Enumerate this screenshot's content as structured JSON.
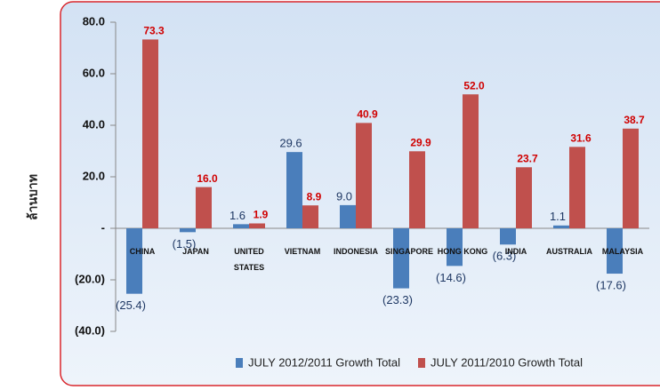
{
  "chart_data": {
    "type": "bar",
    "y_axis_label": "ล้านบาท",
    "categories": [
      "CHINA",
      "JAPAN",
      "UNITED STATES",
      "VIETNAM",
      "INDONESIA",
      "SINGAPORE",
      "HONG KONG",
      "INDIA",
      "AUSTRALIA",
      "MALAYSIA"
    ],
    "series": [
      {
        "name": "JULY 2012/2011 Growth Total",
        "color": "#4a7ebb",
        "values": [
          -25.4,
          -1.5,
          1.6,
          29.6,
          9.0,
          -23.3,
          -14.6,
          -6.3,
          1.1,
          -17.6
        ],
        "value_labels": [
          "(25.4)",
          "(1.5)",
          "1.6",
          "29.6",
          "9.0",
          "(23.3)",
          "(14.6)",
          "(6.3)",
          "1.1",
          "(17.6)"
        ]
      },
      {
        "name": "JULY 2011/2010 Growth Total",
        "color": "#c0504d",
        "values": [
          73.3,
          16.0,
          1.9,
          8.9,
          40.9,
          29.9,
          52.0,
          23.7,
          31.6,
          38.7
        ],
        "value_labels": [
          "73.3",
          "16.0",
          "1.9",
          "8.9",
          "40.9",
          "29.9",
          "52.0",
          "23.7",
          "31.6",
          "38.7"
        ]
      }
    ],
    "ylim": [
      -40,
      80
    ],
    "yticks": [
      {
        "value": -40,
        "label": "(40.0)"
      },
      {
        "value": -20,
        "label": "(20.0)"
      },
      {
        "value": 0,
        "label": "-"
      },
      {
        "value": 20,
        "label": "20.0"
      },
      {
        "value": 40,
        "label": "40.0"
      },
      {
        "value": 60,
        "label": "60.0"
      },
      {
        "value": 80,
        "label": "80.0"
      }
    ],
    "legend": "bottom"
  }
}
